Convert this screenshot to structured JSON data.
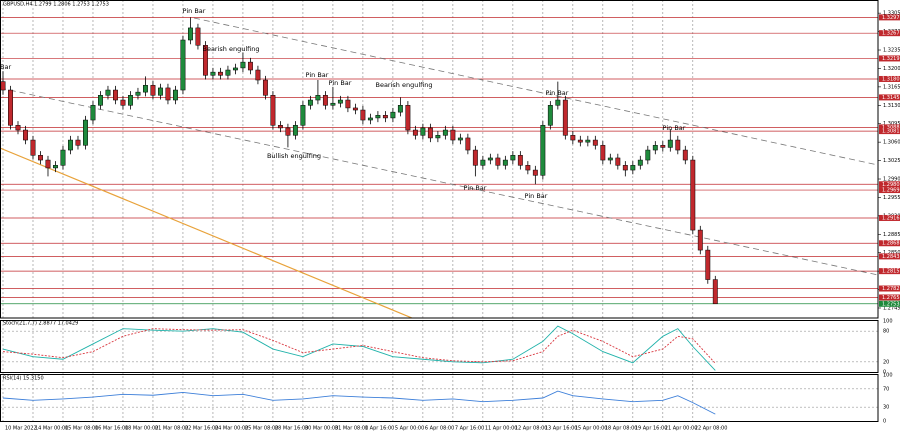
{
  "chart_data": [
    {
      "type": "candlestick",
      "title": "GBPUSD,H4 1.2799 1.2806 1.2753 1.2753",
      "open": [
        1.3175,
        1.3159,
        1.3092,
        1.3083,
        1.3064,
        1.3035,
        1.3026,
        1.3011,
        1.3016,
        1.3045,
        1.3064,
        1.3054,
        1.3102,
        1.313,
        1.3149,
        1.3159,
        1.314,
        1.313,
        1.3149,
        1.3155,
        1.3168,
        1.3149,
        1.3163,
        1.314,
        1.3159,
        1.3254,
        1.3277,
        1.3244,
        1.3187,
        1.3193,
        1.3187,
        1.3197,
        1.3201,
        1.3212,
        1.3197,
        1.3178,
        1.3149,
        1.3092,
        1.3087,
        1.3073,
        1.3092,
        1.313,
        1.314,
        1.3149,
        1.313,
        1.3134,
        1.314,
        1.3125,
        1.3121,
        1.3102,
        1.3106,
        1.3111,
        1.3106,
        1.3117,
        1.313,
        1.3083,
        1.3073,
        1.3087,
        1.3068,
        1.3073,
        1.3083,
        1.3064,
        1.3068,
        1.3045,
        1.3016,
        1.3026,
        1.303,
        1.3016,
        1.3026,
        1.3035,
        1.3016,
        1.3007,
        1.2997,
        1.3092,
        1.313,
        1.314,
        1.3073,
        1.3064,
        1.306,
        1.3064,
        1.3054,
        1.3026,
        1.303,
        1.3016,
        1.3007,
        1.3016,
        1.3026,
        1.3045,
        1.3054,
        1.305,
        1.3064,
        1.3045,
        1.3026,
        1.2893,
        1.2855,
        1.2799
      ],
      "high": [
        1.3195,
        1.3167,
        1.31,
        1.3091,
        1.3072,
        1.3043,
        1.3034,
        1.3024,
        1.3053,
        1.3072,
        1.3072,
        1.311,
        1.3138,
        1.3157,
        1.3167,
        1.3167,
        1.3148,
        1.3157,
        1.3163,
        1.3185,
        1.3176,
        1.3171,
        1.3171,
        1.3167,
        1.3262,
        1.3297,
        1.3285,
        1.3252,
        1.3201,
        1.3201,
        1.3205,
        1.3209,
        1.323,
        1.322,
        1.3205,
        1.3186,
        1.3157,
        1.31,
        1.3095,
        1.31,
        1.3138,
        1.3148,
        1.3178,
        1.3157,
        1.3165,
        1.3148,
        1.3148,
        1.3133,
        1.3129,
        1.3114,
        1.3119,
        1.3119,
        1.3125,
        1.3145,
        1.3138,
        1.3091,
        1.3095,
        1.3095,
        1.3081,
        1.3091,
        1.3091,
        1.3076,
        1.3076,
        1.3053,
        1.3034,
        1.3038,
        1.3038,
        1.3034,
        1.3043,
        1.3043,
        1.3024,
        1.3015,
        1.31,
        1.3138,
        1.3175,
        1.3148,
        1.3081,
        1.3072,
        1.3072,
        1.3072,
        1.3062,
        1.3038,
        1.3038,
        1.3024,
        1.3024,
        1.3034,
        1.3053,
        1.3062,
        1.3062,
        1.3085,
        1.3072,
        1.3053,
        1.3034,
        1.2901,
        1.2863,
        1.2806
      ],
      "low": [
        1.315,
        1.3084,
        1.3075,
        1.3056,
        1.3027,
        1.3018,
        1.2995,
        1.3003,
        1.3008,
        1.3037,
        1.3046,
        1.3046,
        1.3094,
        1.3122,
        1.3141,
        1.3132,
        1.3122,
        1.3122,
        1.3141,
        1.3147,
        1.3141,
        1.3141,
        1.3132,
        1.3132,
        1.3151,
        1.3246,
        1.3236,
        1.3179,
        1.3179,
        1.3179,
        1.3179,
        1.3189,
        1.3193,
        1.3189,
        1.317,
        1.3141,
        1.3084,
        1.3079,
        1.305,
        1.3065,
        1.3084,
        1.3122,
        1.3132,
        1.3122,
        1.3122,
        1.3126,
        1.3117,
        1.3113,
        1.3094,
        1.3094,
        1.3098,
        1.3098,
        1.3098,
        1.3109,
        1.3075,
        1.3065,
        1.3065,
        1.306,
        1.306,
        1.3065,
        1.3056,
        1.3056,
        1.3037,
        1.2995,
        1.3008,
        1.3018,
        1.3008,
        1.3008,
        1.3018,
        1.3008,
        1.2999,
        1.298,
        1.2989,
        1.3084,
        1.3122,
        1.3065,
        1.3056,
        1.3052,
        1.3052,
        1.3046,
        1.3018,
        1.3018,
        1.3008,
        1.2995,
        1.2999,
        1.3008,
        1.3018,
        1.3037,
        1.3042,
        1.3042,
        1.3037,
        1.3018,
        1.2885,
        1.2847,
        1.2791,
        1.2753
      ],
      "close": [
        1.3159,
        1.3092,
        1.3083,
        1.3064,
        1.3035,
        1.3026,
        1.3011,
        1.3016,
        1.3045,
        1.3064,
        1.3054,
        1.3102,
        1.313,
        1.3149,
        1.3159,
        1.314,
        1.313,
        1.3149,
        1.3155,
        1.3168,
        1.3149,
        1.3163,
        1.314,
        1.3159,
        1.3254,
        1.3277,
        1.3244,
        1.3187,
        1.3193,
        1.3187,
        1.3197,
        1.3201,
        1.3212,
        1.3197,
        1.3178,
        1.3149,
        1.3092,
        1.3087,
        1.3073,
        1.3092,
        1.313,
        1.314,
        1.3149,
        1.313,
        1.3134,
        1.314,
        1.3125,
        1.3121,
        1.3102,
        1.3106,
        1.3111,
        1.3106,
        1.3117,
        1.313,
        1.3083,
        1.3073,
        1.3087,
        1.3068,
        1.3073,
        1.3083,
        1.3064,
        1.3068,
        1.3045,
        1.3016,
        1.3026,
        1.303,
        1.3016,
        1.3026,
        1.3035,
        1.3016,
        1.3007,
        1.2997,
        1.3092,
        1.313,
        1.314,
        1.3073,
        1.3064,
        1.306,
        1.3064,
        1.3054,
        1.3026,
        1.303,
        1.3016,
        1.3007,
        1.3016,
        1.3026,
        1.3045,
        1.3054,
        1.305,
        1.3064,
        1.3045,
        1.3026,
        1.2893,
        1.2855,
        1.2799,
        1.2753
      ],
      "colors": {
        "up": "#1f8a3c",
        "down": "#c0282d"
      },
      "xlim": [
        -0.4,
        116.7
      ],
      "xticks": [
        {
          "value": 0,
          "label": "10 Mar 2022"
        },
        {
          "value": 4,
          "label": "14 Mar 00:00"
        },
        {
          "value": 8,
          "label": "15 Mar 08:00"
        },
        {
          "value": 12,
          "label": "16 Mar 16:00"
        },
        {
          "value": 16,
          "label": "18 Mar 00:00"
        },
        {
          "value": 20,
          "label": "21 Mar 08:00"
        },
        {
          "value": 24,
          "label": "22 Mar 16:00"
        },
        {
          "value": 28,
          "label": "24 Mar 00:00"
        },
        {
          "value": 32,
          "label": "25 Mar 08:00"
        },
        {
          "value": 36,
          "label": "28 Mar 16:00"
        },
        {
          "value": 40,
          "label": "30 Mar 00:00"
        },
        {
          "value": 44,
          "label": "31 Mar 08:00"
        },
        {
          "value": 48,
          "label": "1 Apr 16:00"
        },
        {
          "value": 52,
          "label": "5 Apr 00:00"
        },
        {
          "value": 56,
          "label": "6 Apr 08:00"
        },
        {
          "value": 60,
          "label": "7 Apr 16:00"
        },
        {
          "value": 64,
          "label": "11 Apr 00:00"
        },
        {
          "value": 68,
          "label": "12 Apr 08:00"
        },
        {
          "value": 72,
          "label": "13 Apr 16:00"
        },
        {
          "value": 76,
          "label": "15 Apr 00:00"
        },
        {
          "value": 80,
          "label": "18 Apr 08:00"
        },
        {
          "value": 84,
          "label": "19 Apr 16:00"
        },
        {
          "value": 88,
          "label": "21 Apr 00:00"
        },
        {
          "value": 92,
          "label": "22 Apr 08:00"
        }
      ],
      "ylim": [
        1.2726,
        1.333
      ],
      "yticks": [
        {
          "value": 1.3305,
          "label": "1.3305"
        },
        {
          "value": 1.327,
          "label": "1.3270"
        },
        {
          "value": 1.3235,
          "label": "1.3235"
        },
        {
          "value": 1.32,
          "label": "1.3200"
        },
        {
          "value": 1.3165,
          "label": "1.3165"
        },
        {
          "value": 1.313,
          "label": "1.3130"
        },
        {
          "value": 1.3095,
          "label": "1.3095"
        },
        {
          "value": 1.306,
          "label": "1.3060"
        },
        {
          "value": 1.3025,
          "label": "1.3025"
        },
        {
          "value": 1.299,
          "label": "1.2990"
        },
        {
          "value": 1.2955,
          "label": "1.2955"
        },
        {
          "value": 1.292,
          "label": "1.2920"
        },
        {
          "value": 1.2885,
          "label": "1.2885"
        },
        {
          "value": 1.285,
          "label": "1.2850"
        },
        {
          "value": 1.2815,
          "label": "1.2815"
        },
        {
          "value": 1.278,
          "label": "1.2780"
        },
        {
          "value": 1.2745,
          "label": "1.2745"
        }
      ],
      "levels": [
        1.3297,
        1.3267,
        1.3219,
        {
          "value": 1.318,
          "label": "1.3180"
        },
        1.3145,
        1.3088,
        1.3081,
        {
          "value": 1.298,
          "label": "1.2980"
        },
        1.2969,
        1.2916,
        1.2868,
        1.2843,
        1.2815,
        1.2782,
        1.2765
      ],
      "level_color": "#c0282d",
      "current_price": 1.2753,
      "current_color": "#1f8a3c",
      "annotations": [
        "Pin Bar",
        "Bearish engulfing",
        "Pin Bar",
        "Pin Bar",
        "Bearish engulfing",
        "Bullish engulfing",
        "Pin Bar",
        "Pin Bar",
        "Pin Bar",
        "Pin Bar",
        "Bar"
      ]
    },
    {
      "type": "line",
      "title": "Stoch(21,7,7) 2.8877 17.0429",
      "x": [
        0,
        4,
        8,
        12,
        16,
        20,
        24,
        28,
        32,
        36,
        40,
        44,
        48,
        52,
        56,
        60,
        64,
        68,
        72,
        74,
        76,
        80,
        84,
        88,
        90,
        92,
        95
      ],
      "series": [
        {
          "color": "#20b2aa",
          "values": [
            45,
            30,
            25,
            55,
            85,
            82,
            80,
            85,
            78,
            45,
            30,
            55,
            50,
            30,
            25,
            20,
            18,
            25,
            60,
            90,
            75,
            40,
            18,
            70,
            85,
            50,
            3
          ]
        },
        {
          "color": "#d9363e",
          "dash": true,
          "values": [
            40,
            35,
            28,
            40,
            70,
            85,
            83,
            82,
            83,
            62,
            38,
            45,
            52,
            40,
            28,
            22,
            20,
            22,
            40,
            70,
            82,
            60,
            30,
            45,
            70,
            65,
            17
          ]
        }
      ],
      "ylim": [
        0,
        100
      ],
      "yticks": [
        0,
        20,
        80,
        100
      ]
    },
    {
      "type": "line",
      "title": "RSI(14) 15.3150",
      "x": [
        0,
        4,
        8,
        12,
        16,
        20,
        24,
        28,
        32,
        36,
        40,
        44,
        48,
        52,
        56,
        60,
        64,
        68,
        72,
        74,
        76,
        80,
        84,
        88,
        90,
        92,
        95
      ],
      "series": [
        {
          "color": "#3d7fd9",
          "values": [
            50,
            45,
            48,
            52,
            58,
            56,
            62,
            55,
            58,
            45,
            48,
            55,
            52,
            50,
            45,
            48,
            42,
            45,
            50,
            65,
            55,
            48,
            42,
            45,
            55,
            40,
            15
          ]
        }
      ],
      "ylim": [
        0,
        100
      ],
      "yticks": [
        0,
        30,
        70,
        100
      ]
    }
  ]
}
